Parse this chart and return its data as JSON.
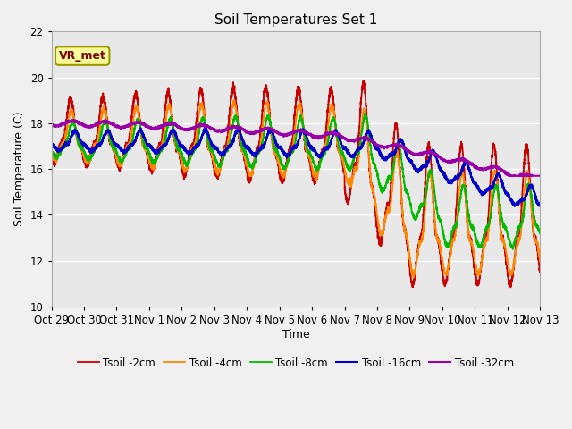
{
  "title": "Soil Temperatures Set 1",
  "xlabel": "Time",
  "ylabel": "Soil Temperature (C)",
  "ylim": [
    10,
    22
  ],
  "yticks": [
    10,
    12,
    14,
    16,
    18,
    20,
    22
  ],
  "xtick_labels": [
    "Oct 29",
    "Oct 30",
    "Oct 31",
    "Nov 1",
    "Nov 2",
    "Nov 3",
    "Nov 4",
    "Nov 5",
    "Nov 6",
    "Nov 7",
    "Nov 8",
    "Nov 9",
    "Nov 10",
    "Nov 11",
    "Nov 12",
    "Nov 13"
  ],
  "series_colors": [
    "#cc0000",
    "#ff8800",
    "#00bb00",
    "#0000cc",
    "#9900aa"
  ],
  "series_labels": [
    "Tsoil -2cm",
    "Tsoil -4cm",
    "Tsoil -8cm",
    "Tsoil -16cm",
    "Tsoil -32cm"
  ],
  "fig_bg_color": "#f0f0f0",
  "plot_bg_color": "#e8e8e8",
  "grid_color": "#ffffff",
  "annotation_text": "VR_met",
  "annotation_fg": "#800000",
  "annotation_bg": "#ffff99",
  "annotation_border": "#999900"
}
